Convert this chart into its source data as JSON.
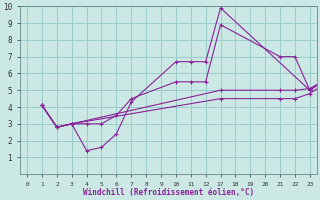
{
  "xlabel": "Windchill (Refroidissement éolien,°C)",
  "background_color": "#cce8e4",
  "grid_color": "#99cccc",
  "line_color": "#882299",
  "ylim": [
    0,
    10
  ],
  "yticks": [
    1,
    2,
    3,
    4,
    5,
    6,
    7,
    8,
    9,
    10
  ],
  "x_labels": [
    "0",
    "1",
    "2",
    "3",
    "4",
    "5",
    "6",
    "7",
    "8",
    "9",
    "10",
    "11",
    "12",
    "17",
    "18",
    "19",
    "20",
    "21",
    "22",
    "23"
  ],
  "series": [
    {
      "xi": [
        1,
        2,
        3,
        4,
        5,
        6,
        7,
        10,
        11,
        12,
        13,
        19,
        20
      ],
      "y": [
        4.1,
        2.8,
        3.0,
        1.4,
        1.6,
        2.4,
        4.3,
        6.7,
        6.7,
        6.7,
        9.9,
        5.0,
        5.6
      ]
    },
    {
      "xi": [
        1,
        2,
        3,
        4,
        5,
        6,
        7,
        10,
        11,
        12,
        13,
        17,
        18,
        19,
        20
      ],
      "y": [
        4.1,
        2.8,
        3.0,
        3.0,
        3.0,
        3.5,
        4.5,
        5.5,
        5.5,
        5.5,
        8.9,
        7.0,
        7.0,
        5.0,
        5.6
      ]
    },
    {
      "xi": [
        1,
        2,
        3,
        13,
        17,
        18,
        19,
        20
      ],
      "y": [
        4.1,
        2.8,
        3.0,
        5.0,
        5.0,
        5.0,
        5.1,
        5.6
      ]
    },
    {
      "xi": [
        1,
        2,
        3,
        13,
        17,
        18,
        19,
        20
      ],
      "y": [
        4.1,
        2.8,
        3.0,
        4.5,
        4.5,
        4.5,
        4.8,
        5.4
      ]
    }
  ]
}
